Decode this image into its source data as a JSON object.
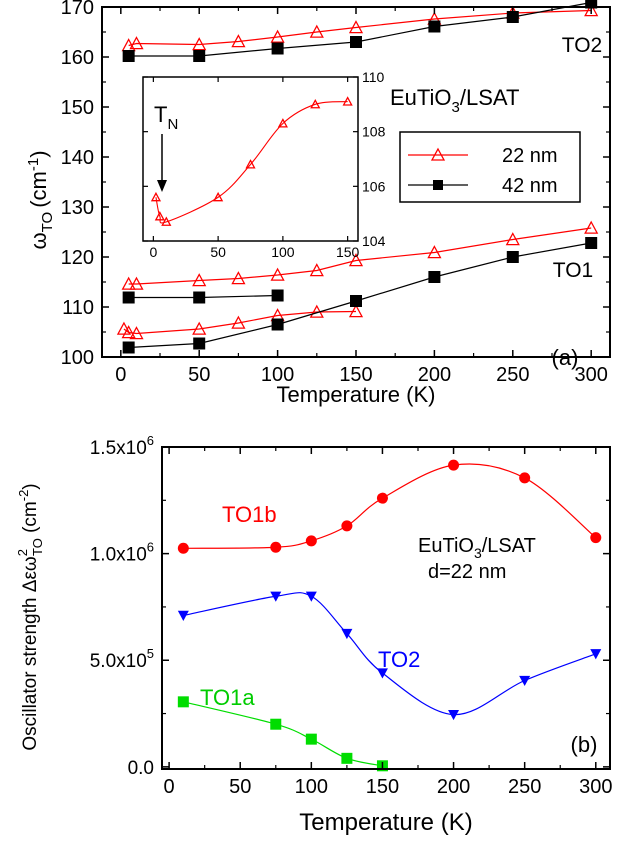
{
  "chart_data": [
    {
      "panel": "a",
      "type": "scatter",
      "panel_label": "(a)",
      "xlabel": "Temperature (K)",
      "ylabel": "ω",
      "ylabel_sub": "TO",
      "ylabel_unit": "(cm",
      "ylabel_sup": "-1",
      "ylabel_close": ")",
      "xlim": [
        -12,
        312
      ],
      "ylim": [
        100,
        170
      ],
      "xticks": [
        0,
        50,
        100,
        150,
        200,
        250,
        300
      ],
      "yticks": [
        100,
        110,
        120,
        130,
        140,
        150,
        160,
        170
      ],
      "sample_text": "EuTiO",
      "sample_sub": "3",
      "sample_rest": "/LSAT",
      "annotations": [
        "TO2",
        "TO1"
      ],
      "legend": {
        "placement": "center-right",
        "entries": [
          {
            "label": "22 nm",
            "marker": "open-triangle",
            "color": "#ff0000"
          },
          {
            "label": "42 nm",
            "marker": "filled-square",
            "color": "#000000"
          }
        ]
      },
      "series": [
        {
          "name": "22 nm",
          "mode": "TO2",
          "color": "#ff0000",
          "marker": "open-triangle",
          "x": [
            5,
            10,
            50,
            75,
            100,
            125,
            150,
            200,
            250,
            300
          ],
          "y": [
            162.3,
            162.7,
            162.5,
            163.1,
            164.0,
            165.0,
            165.9,
            167.6,
            168.8,
            169.3
          ]
        },
        {
          "name": "42 nm",
          "mode": "TO2",
          "color": "#000000",
          "marker": "filled-square",
          "x": [
            5,
            50,
            100,
            150,
            200,
            250,
            300
          ],
          "y": [
            160.2,
            160.2,
            161.7,
            163.0,
            166.1,
            168.0,
            170.9
          ]
        },
        {
          "name": "22 nm",
          "mode": "TO1 upper",
          "color": "#ff0000",
          "marker": "open-triangle",
          "x": [
            5,
            10,
            50,
            75,
            100,
            125,
            150,
            200,
            250,
            300
          ],
          "y": [
            114.6,
            114.6,
            115.3,
            115.7,
            116.4,
            117.3,
            119.3,
            120.9,
            123.5,
            125.8
          ]
        },
        {
          "name": "42 nm",
          "mode": "TO1 upper",
          "color": "#000000",
          "marker": "filled-square",
          "x": [
            5,
            50,
            100
          ],
          "y": [
            111.9,
            111.9,
            112.3
          ]
        },
        {
          "name": "22 nm",
          "mode": "TO1 lower",
          "color": "#ff0000",
          "marker": "open-triangle",
          "x": [
            2,
            5,
            10,
            50,
            75,
            100,
            125,
            150
          ],
          "y": [
            105.6,
            104.9,
            104.7,
            105.6,
            106.8,
            108.3,
            109.0,
            109.1
          ]
        },
        {
          "name": "42 nm",
          "mode": "TO1 lower",
          "color": "#000000",
          "marker": "filled-square",
          "x": [
            5,
            50,
            100,
            150,
            200,
            250,
            300
          ],
          "y": [
            101.9,
            102.7,
            106.5,
            111.2,
            116.0,
            120.0,
            122.8
          ]
        }
      ],
      "inset": {
        "xlim": [
          -8,
          158
        ],
        "ylim": [
          104,
          110
        ],
        "xticks": [
          0,
          50,
          100,
          150
        ],
        "yticks": [
          104,
          106,
          108,
          110
        ],
        "annotation": "T",
        "annotation_sub": "N",
        "series": [
          {
            "name": "22 nm",
            "color": "#ff0000",
            "marker": "open-triangle",
            "x": [
              2,
              5,
              10,
              50,
              75,
              100,
              125,
              150
            ],
            "y": [
              105.6,
              104.9,
              104.7,
              105.6,
              106.8,
              108.3,
              109.0,
              109.1
            ]
          }
        ]
      }
    },
    {
      "panel": "b",
      "type": "line",
      "panel_label": "(b)",
      "xlabel": "Temperature (K)",
      "ylabel": "Oscillator strength Δεω",
      "ylabel_sup": "2",
      "ylabel_sub": "TO",
      "ylabel_unit": " (cm",
      "ylabel_unit_sup": "-2",
      "ylabel_close": ")",
      "xlim": [
        -5,
        310
      ],
      "ylim": [
        -10000,
        1500000
      ],
      "xticks": [
        0,
        50,
        100,
        150,
        200,
        250,
        300
      ],
      "yticks": [
        0,
        500000,
        1000000,
        1500000
      ],
      "ytick_labels": [
        {
          "base": "0.0",
          "sup": ""
        },
        {
          "base": "5.0x10",
          "sup": "5"
        },
        {
          "base": "1.0x10",
          "sup": "6"
        },
        {
          "base": "1.5x10",
          "sup": "6"
        }
      ],
      "sample_text": "EuTiO",
      "sample_sub": "3",
      "sample_rest": "/LSAT",
      "sample_line2": "d=22 nm",
      "series": [
        {
          "name": "TO1b",
          "color": "#ff0000",
          "marker": "circle",
          "x": [
            10,
            75,
            100,
            125,
            150,
            200,
            250,
            300
          ],
          "y": [
            1025000,
            1030000,
            1060000,
            1130000,
            1260000,
            1415000,
            1355000,
            1075000
          ]
        },
        {
          "name": "TO2",
          "color": "#0000ff",
          "marker": "down-triangle",
          "x": [
            10,
            75,
            100,
            125,
            150,
            200,
            250,
            300
          ],
          "y": [
            710000,
            800000,
            800000,
            625000,
            440000,
            245000,
            405000,
            530000
          ]
        },
        {
          "name": "TO1a",
          "color": "#00dd00",
          "marker": "square",
          "x": [
            10,
            75,
            100,
            125,
            150
          ],
          "y": [
            305000,
            200000,
            130000,
            40000,
            5000
          ]
        }
      ]
    }
  ]
}
